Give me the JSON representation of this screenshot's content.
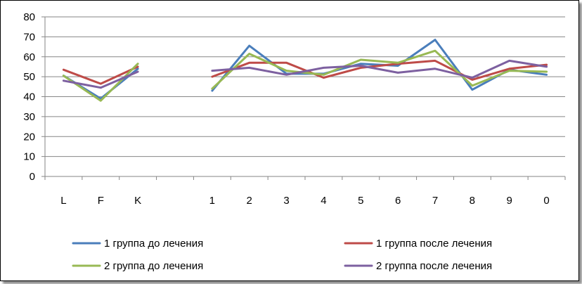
{
  "chart_data": {
    "type": "line",
    "categories": [
      "L",
      "F",
      "K",
      "",
      "1",
      "2",
      "3",
      "4",
      "5",
      "6",
      "7",
      "8",
      "9",
      "0"
    ],
    "ylim": [
      0,
      80
    ],
    "yticks": [
      0,
      10,
      20,
      30,
      40,
      50,
      60,
      70,
      80
    ],
    "grid": true,
    "legend_position": "bottom",
    "series": [
      {
        "name": "1 группа до лечения",
        "color": "#4a7ebb",
        "segments": [
          [
            50.5,
            39,
            54
          ],
          [
            null,
            null,
            null,
            null,
            43,
            65.5,
            51.5,
            51.5,
            56.5,
            55.5,
            68.5,
            43.5,
            53.5,
            51
          ]
        ]
      },
      {
        "name": "1 группа после лечения",
        "color": "#be4b48",
        "segments": [
          [
            53.5,
            46.5,
            55
          ],
          [
            null,
            null,
            null,
            null,
            50,
            57,
            57,
            49.5,
            54.5,
            56.5,
            58,
            48.5,
            54,
            56
          ]
        ]
      },
      {
        "name": "2 группа до лечения",
        "color": "#98b954",
        "segments": [
          [
            50.5,
            38,
            56.5
          ],
          [
            null,
            null,
            null,
            null,
            44,
            61.5,
            53,
            51,
            58.5,
            57,
            63,
            45.5,
            53,
            52.5
          ]
        ]
      },
      {
        "name": "2 группа после лечения",
        "color": "#7d60a0",
        "segments": [
          [
            48,
            44.5,
            52.5
          ],
          [
            null,
            null,
            null,
            null,
            53,
            54.5,
            51,
            54.5,
            55.5,
            52,
            54,
            49.5,
            58,
            55
          ]
        ]
      }
    ]
  }
}
